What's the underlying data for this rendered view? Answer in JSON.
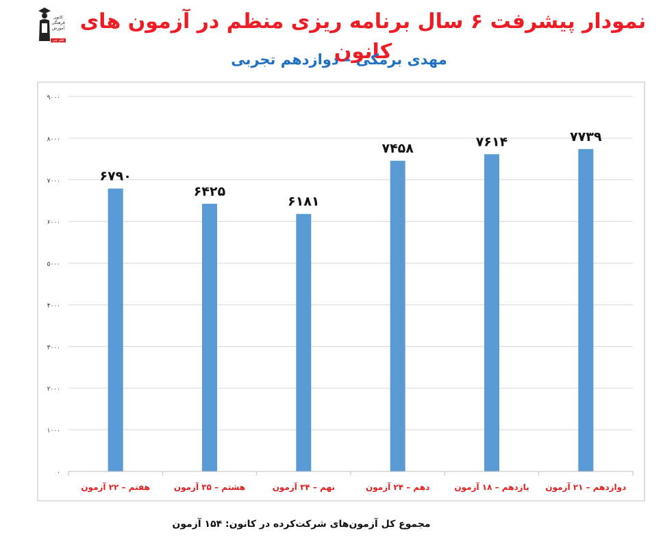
{
  "header": {
    "title": "نمودار پیشرفت ۶ سال برنامه ریزی منظم در آزمون های کانون",
    "subtitle": "مهدی برمکی – دوازدهم تجربی"
  },
  "logo": {
    "icon": "graduate-icon",
    "text": "کانون فرهنگی آموزش",
    "badge": "قلم چی"
  },
  "footer": {
    "text": "مجموع کل آزمون‌های شرکت‌کرده در کانون: ۱۵۴ آزمون"
  },
  "chart_data": {
    "type": "bar",
    "categories": [
      "هفتم – ۲۲ آزمون",
      "هشتم – ۳۵ آزمون",
      "نهم – ۳۴ آزمون",
      "دهم – ۲۴ آزمون",
      "یازدهم – ۱۸ آزمون",
      "دوازدهم – ۲۱ آزمون"
    ],
    "values": [
      6790,
      6425,
      6181,
      7458,
      7614,
      7739
    ],
    "value_labels": [
      "۶۷۹۰",
      "۶۴۲۵",
      "۶۱۸۱",
      "۷۴۵۸",
      "۷۶۱۴",
      "۷۷۳۹"
    ],
    "ylim": [
      0,
      9000
    ],
    "yticks": [
      0,
      1000,
      2000,
      3000,
      4000,
      5000,
      6000,
      7000,
      8000,
      9000
    ],
    "ytick_labels": [
      "۰",
      "۱۰۰۰",
      "۲۰۰۰",
      "۳۰۰۰",
      "۴۰۰۰",
      "۵۰۰۰",
      "۶۰۰۰",
      "۷۰۰۰",
      "۸۰۰۰",
      "۹۰۰۰"
    ],
    "grid": true,
    "legend": "none",
    "bar_color": "#5b9bd5",
    "category_label_color": "#e02020",
    "gridline_color": "#d9d9d9"
  }
}
